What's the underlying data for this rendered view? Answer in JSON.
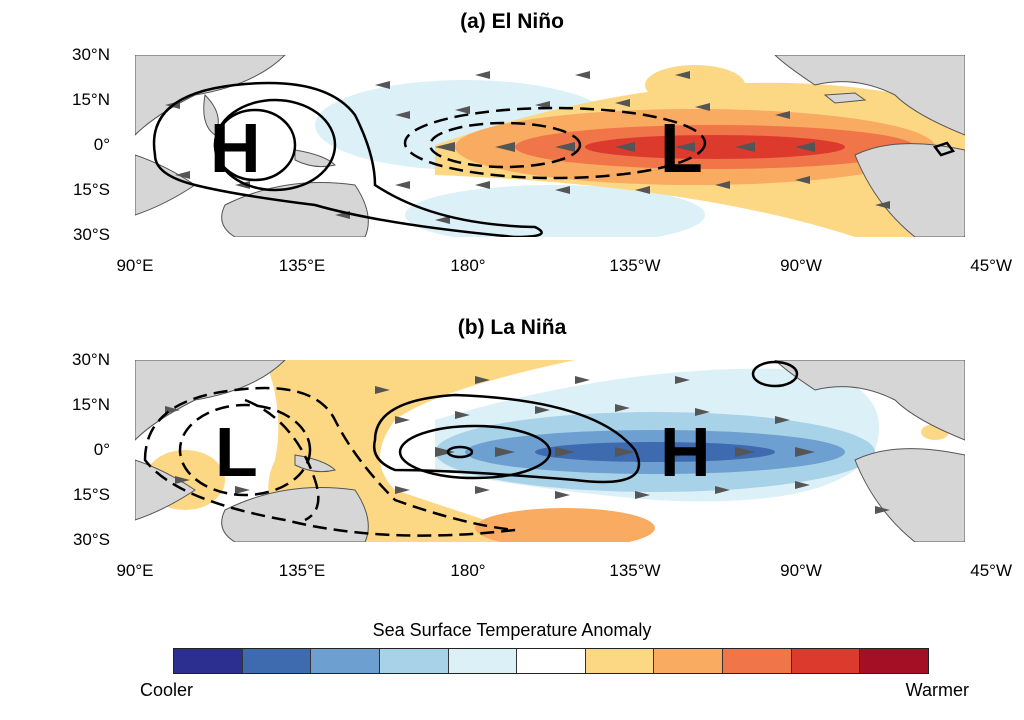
{
  "panels": [
    {
      "id": "a",
      "title": "(a) El Niño",
      "high_label": "H",
      "low_label": "L"
    },
    {
      "id": "b",
      "title": "(b) La Niña",
      "high_label": "H",
      "low_label": "L"
    }
  ],
  "lat_labels": [
    "30°N",
    "15°N",
    "0°",
    "15°S",
    "30°S"
  ],
  "lon_labels": [
    "90°E",
    "135°E",
    "180°",
    "135°W",
    "90°W",
    "45°W"
  ],
  "colorbar": {
    "title": "Sea Surface Temperature Anomaly",
    "left_label": "Cooler",
    "right_label": "Warmer",
    "colors": [
      "#2c2f8f",
      "#3e6ab0",
      "#6d9fd0",
      "#a8d2e8",
      "#dcf0f8",
      "#ffffff",
      "#fcd885",
      "#f9ab62",
      "#f07548",
      "#dc3a2d",
      "#a50f26"
    ]
  }
}
